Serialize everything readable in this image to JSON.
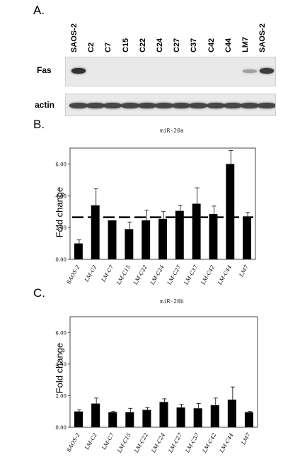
{
  "panels": {
    "a": {
      "letter": "A."
    },
    "b": {
      "letter": "B."
    },
    "c": {
      "letter": "C."
    }
  },
  "blot": {
    "lanes": [
      "SAOS-2",
      "C2",
      "C7",
      "C15",
      "C22",
      "C24",
      "C27",
      "C37",
      "C42",
      "C44",
      "LM7",
      "SAOS-2"
    ],
    "rows": [
      {
        "label": "Fas",
        "intensities": [
          0.9,
          0,
          0,
          0,
          0,
          0,
          0,
          0,
          0,
          0,
          0.35,
          0.85
        ]
      },
      {
        "label": "actin",
        "intensities": [
          0.8,
          0.8,
          0.8,
          0.8,
          0.8,
          0.8,
          0.8,
          0.8,
          0.8,
          0.8,
          0.8,
          0.8
        ]
      }
    ]
  },
  "chart_data": [
    {
      "type": "bar",
      "title": "miR-20a",
      "ylabel": "Fold change",
      "xlabel": "",
      "categories": [
        "SAOS-2",
        "LM-C2",
        "LM-C7",
        "LM-C15",
        "LM-C22",
        "LM-C24",
        "LM-C27",
        "LM-C37",
        "LM-C42",
        "LM-C44",
        "LM7"
      ],
      "values": [
        1.0,
        3.4,
        2.45,
        1.9,
        2.45,
        2.55,
        3.05,
        3.5,
        2.85,
        6.0,
        2.7
      ],
      "errors": [
        0.22,
        1.05,
        0.0,
        0.45,
        0.65,
        0.45,
        0.35,
        1.0,
        0.5,
        0.85,
        0.25
      ],
      "reference_line": 2.65,
      "yticks": [
        "0.00",
        "2.00",
        "4.00",
        "6.00"
      ],
      "ylim": [
        0,
        7
      ],
      "color": "#000000"
    },
    {
      "type": "bar",
      "title": "miR-20b",
      "ylabel": "Fold change",
      "xlabel": "",
      "categories": [
        "SAOS-2",
        "LM-C2",
        "LM-C7",
        "LM-C15",
        "LM-C22",
        "LM-C24",
        "LM-C27",
        "LM-C37",
        "LM-C42",
        "LM-C44",
        "LM7"
      ],
      "values": [
        1.0,
        1.5,
        0.95,
        0.95,
        1.1,
        1.6,
        1.25,
        1.2,
        1.4,
        1.75,
        0.95
      ],
      "errors": [
        0.1,
        0.35,
        0.05,
        0.25,
        0.15,
        0.2,
        0.2,
        0.3,
        0.45,
        0.8,
        0.05
      ],
      "yticks": [
        "0.00",
        "2.00",
        "4.00",
        "6.00"
      ],
      "ylim": [
        0,
        7
      ],
      "color": "#000000"
    }
  ]
}
